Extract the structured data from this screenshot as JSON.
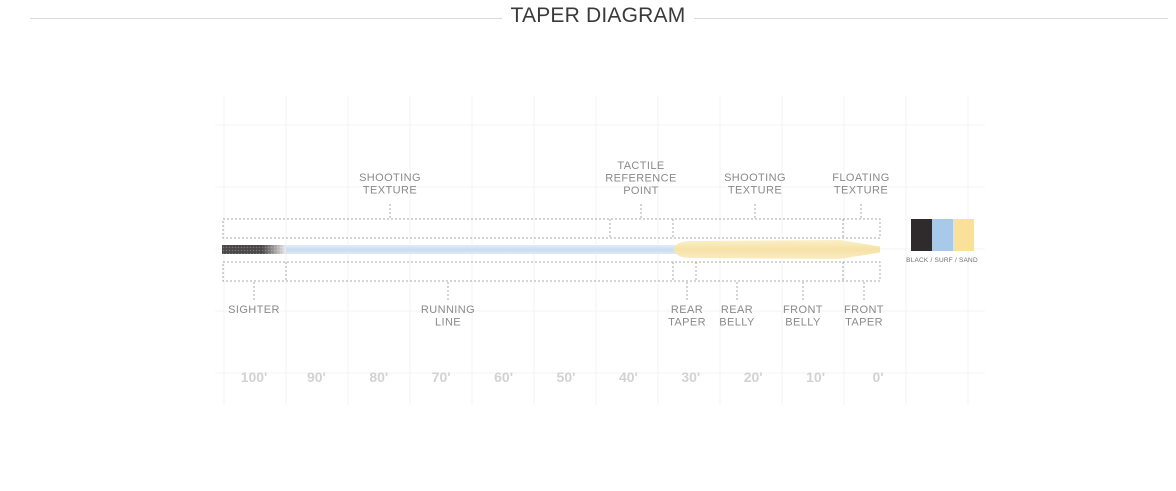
{
  "page": {
    "title": "TAPER DIAGRAM"
  },
  "diagram": {
    "labels_top": [
      {
        "id": "shooting-texture-left",
        "lines": [
          "SHOOTING",
          "TEXTURE"
        ]
      },
      {
        "id": "tactile-reference-point",
        "lines": [
          "TACTILE",
          "REFERENCE",
          "POINT"
        ]
      },
      {
        "id": "shooting-texture-right",
        "lines": [
          "SHOOTING",
          "TEXTURE"
        ]
      },
      {
        "id": "floating-texture",
        "lines": [
          "FLOATING",
          "TEXTURE"
        ]
      }
    ],
    "labels_bottom": [
      {
        "id": "sighter",
        "lines": [
          "SIGHTER"
        ]
      },
      {
        "id": "running-line",
        "lines": [
          "RUNNING",
          "LINE"
        ]
      },
      {
        "id": "rear-taper",
        "lines": [
          "REAR",
          "TAPER"
        ]
      },
      {
        "id": "rear-belly",
        "lines": [
          "REAR",
          "BELLY"
        ]
      },
      {
        "id": "front-belly",
        "lines": [
          "FRONT",
          "BELLY"
        ]
      },
      {
        "id": "front-taper",
        "lines": [
          "FRONT",
          "TAPER"
        ]
      }
    ],
    "scale_ticks": [
      "100'",
      "90'",
      "80'",
      "70'",
      "60'",
      "50'",
      "40'",
      "30'",
      "20'",
      "10'",
      "0'"
    ],
    "color_swatches": [
      {
        "name": "BLACK",
        "color": "#2f2b2c"
      },
      {
        "name": "SURF",
        "color": "#a9c9ea"
      },
      {
        "name": "SAND",
        "color": "#f9e19a"
      }
    ],
    "color_caption": "BLACK / SURF / SAND",
    "colors": {
      "sighter": "#4a4546",
      "running_line": "#cfe0f1",
      "head": "#f8e6b0",
      "dotted": "#a8a8a8",
      "grid": "#f3f3f3"
    }
  }
}
